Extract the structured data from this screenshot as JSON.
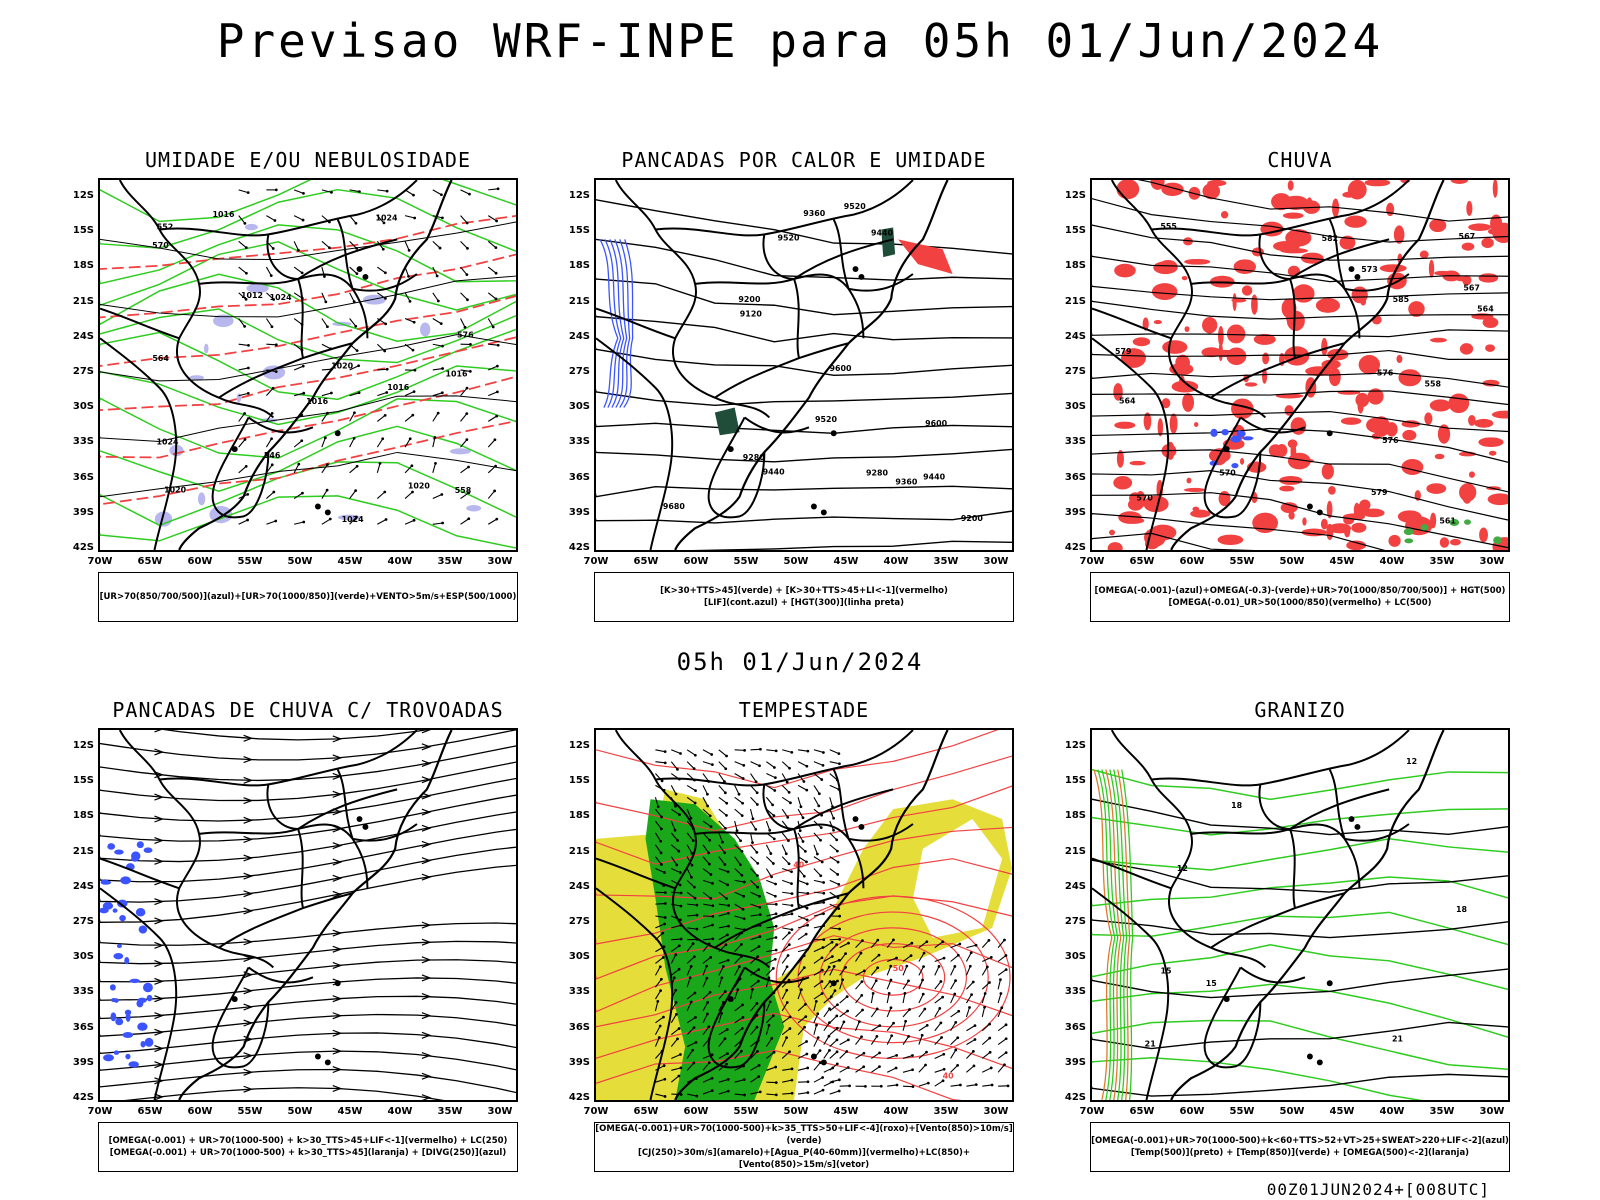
{
  "title": "Previsao WRF-INPE  para 05h 01/Jun/2024",
  "subtitle": "05h 01/Jun/2024",
  "footer": "00Z01JUN2024+[008UTC]",
  "lat_labels": [
    "12S",
    "15S",
    "18S",
    "21S",
    "24S",
    "27S",
    "30S",
    "33S",
    "36S",
    "39S",
    "42S"
  ],
  "lon_labels": [
    "70W",
    "65W",
    "60W",
    "55W",
    "50W",
    "45W",
    "40W",
    "35W",
    "30W"
  ],
  "colors": {
    "red": "#f24141",
    "green": "#2ecc1f",
    "blue": "#3b54ff",
    "yellow": "#e5dd3a",
    "dark_green": "#1aa81a",
    "orange": "#e07a2a"
  },
  "panels": [
    {
      "title": "UMIDADE E/OU NEBULOSIDADE",
      "legend": [
        "[UR>70(850/700/500)](azul)+[UR>70(1000/850)](verde)+VENTO>5m/s+ESP(500/1000)"
      ],
      "contour_labels": [
        "1016",
        "1016",
        "1020",
        "1016",
        "1024",
        "1020",
        "1024",
        "1024",
        "1012",
        "1024",
        "570",
        "564",
        "552",
        "558",
        "546",
        "576",
        "1016",
        "1020"
      ]
    },
    {
      "title": "PANCADAS POR CALOR E UMIDADE",
      "legend": [
        "[K>30+TTS>45](verde) + [K>30+TTS>45+LI<-1](vermelho)",
        "[LIF](cont.azul) + [HGT(300)](linha preta)"
      ],
      "contour_labels": [
        "9680",
        "9600",
        "9600",
        "9520",
        "9520",
        "9520",
        "9440",
        "9440",
        "9360",
        "9280",
        "9200",
        "9120",
        "9440",
        "9360",
        "9280",
        "9200"
      ]
    },
    {
      "title": "CHUVA",
      "legend": [
        "[OMEGA(-0.001)-(azul)+OMEGA(-0.3)-(verde)+UR>70(1000/850/700/500)] + HGT(500)",
        "[OMEGA(-0.01)_UR>50(1000/850)(vermelho) + LC(500)"
      ],
      "contour_labels": [
        "585",
        "582",
        "576",
        "579",
        "570",
        "567",
        "564",
        "561",
        "558",
        "555",
        "579",
        "576",
        "573",
        "570",
        "567",
        "564"
      ]
    },
    {
      "title": "PANCADAS DE CHUVA C/ TROVOADAS",
      "legend": [
        "[OMEGA(-0.001) + UR>70(1000-500) + k>30_TTS>45+LIF<-1](vermelho) + LC(250)",
        "[OMEGA(-0.001) + UR>70(1000-500) + k>30_TTS>45](laranja) + [DIVG(250)](azul)"
      ],
      "contour_labels": []
    },
    {
      "title": "TEMPESTADE",
      "legend": [
        "[OMEGA(-0.001)+UR>70(1000-500)+k>35_TTS>50+LIF<-4](roxo)+[Vento(850)>10m/s](verde)",
        "[CJ(250)>30m/s](amarelo)+[Agua_P(40-60mm)](vermelho)+LC(850)+[Vento(850)>15m/s](vetor)"
      ],
      "contour_labels": [
        "40",
        "40",
        "50"
      ]
    },
    {
      "title": "GRANIZO",
      "legend": [
        "[OMEGA(-0.001)+UR>70(1000-500)+k<60+TTS>52+VT>25+SWEAT>220+LIF<-2](azul)",
        "[Temp(500)](preto) + [Temp(850)](verde) + [OMEGA(500)<-2](laranja)"
      ],
      "contour_labels": [
        "12",
        "15",
        "18",
        "21",
        "12",
        "15",
        "18",
        "21"
      ]
    }
  ]
}
